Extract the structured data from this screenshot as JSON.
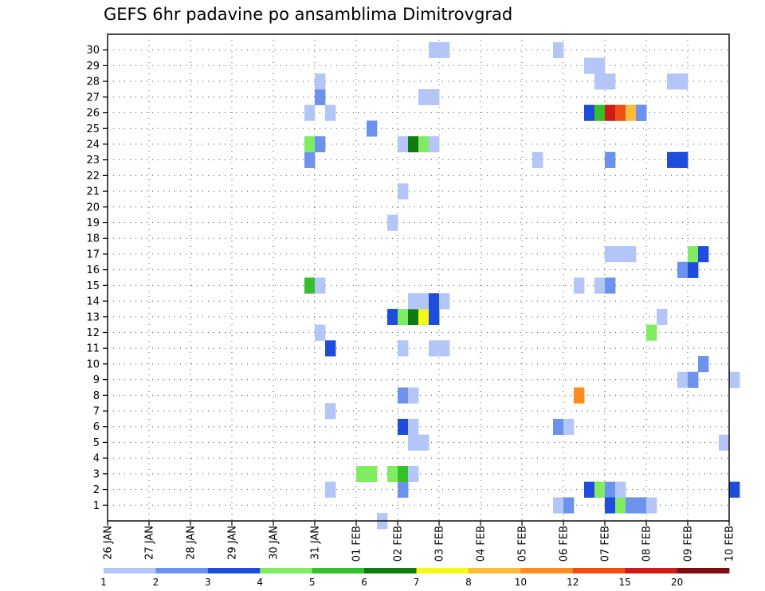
{
  "chart_data": {
    "type": "heatmap",
    "title": "GEFS 6hr padavine po ansamblima Dimitrovgrad",
    "x_tick_labels": [
      "26 JAN",
      "27 JAN",
      "28 JAN",
      "29 JAN",
      "30 JAN",
      "31 JAN",
      "01 FEB",
      "02 FEB",
      "03 FEB",
      "04 FEB",
      "05 FEB",
      "06 FEB",
      "07 FEB",
      "08 FEB",
      "09 FEB",
      "10 FEB"
    ],
    "y_tick_labels": [
      "1",
      "2",
      "3",
      "4",
      "5",
      "6",
      "7",
      "8",
      "9",
      "10",
      "11",
      "12",
      "13",
      "14",
      "15",
      "16",
      "17",
      "18",
      "19",
      "20",
      "21",
      "22",
      "23",
      "24",
      "25",
      "26",
      "27",
      "28",
      "29",
      "30"
    ],
    "ylim": [
      0,
      30
    ],
    "grid": true,
    "colorbar": {
      "labels": [
        "1",
        "2",
        "3",
        "4",
        "5",
        "6",
        "7",
        "8",
        "10",
        "12",
        "15",
        "20"
      ],
      "colors": [
        "#b3c6f7",
        "#6b93ee",
        "#1f4ddb",
        "#7fec62",
        "#33c02a",
        "#0f7a10",
        "#f7f71a",
        "#fdbb3a",
        "#fc8c1e",
        "#ef5012",
        "#cf1a18",
        "#800e0e"
      ]
    },
    "cells": [
      {
        "day": "31 JAN",
        "step": 1,
        "member": 2,
        "level": 1
      },
      {
        "day": "02 FEB",
        "step": 0,
        "member": 2,
        "level": 2
      },
      {
        "day": "06 FEB",
        "step": -1,
        "member": 1,
        "level": 1
      },
      {
        "day": "06 FEB",
        "step": 0,
        "member": 1,
        "level": 2
      },
      {
        "day": "07 FEB",
        "step": -2,
        "member": 2,
        "level": 3
      },
      {
        "day": "07 FEB",
        "step": -1,
        "member": 2,
        "level": 1
      },
      {
        "day": "07 FEB",
        "step": -1,
        "member": 2,
        "level": 4
      },
      {
        "day": "07 FEB",
        "step": 0,
        "member": 2,
        "level": 2
      },
      {
        "day": "07 FEB",
        "step": 0,
        "member": 1,
        "level": 3
      },
      {
        "day": "07 FEB",
        "step": 1,
        "member": 1,
        "level": 4
      },
      {
        "day": "07 FEB",
        "step": 2,
        "member": 1,
        "level": 2
      },
      {
        "day": "07 FEB",
        "step": 3,
        "member": 1,
        "level": 1
      },
      {
        "day": "08 FEB",
        "step": -1,
        "member": 1,
        "level": 2
      },
      {
        "day": "08 FEB",
        "step": 0,
        "member": 1,
        "level": 1
      },
      {
        "day": "07 FEB",
        "step": 1,
        "member": 2,
        "level": 1
      },
      {
        "day": "10 FEB",
        "step": 0,
        "member": 2,
        "level": 3
      },
      {
        "day": "01 FEB",
        "step": 0,
        "member": 3,
        "level": 4
      },
      {
        "day": "01 FEB",
        "step": 1,
        "member": 3,
        "level": 4
      },
      {
        "day": "02 FEB",
        "step": -1,
        "member": 3,
        "level": 4
      },
      {
        "day": "02 FEB",
        "step": 0,
        "member": 3,
        "level": 5
      },
      {
        "day": "02 FEB",
        "step": 1,
        "member": 3,
        "level": 1
      },
      {
        "day": "02 FEB",
        "step": 1,
        "member": 5,
        "level": 1
      },
      {
        "day": "02 FEB",
        "step": 2,
        "member": 5,
        "level": 1
      },
      {
        "day": "10 FEB",
        "step": -1,
        "member": 5,
        "level": 1
      },
      {
        "day": "02 FEB",
        "step": 0,
        "member": 6,
        "level": 3
      },
      {
        "day": "02 FEB",
        "step": 1,
        "member": 6,
        "level": 1
      },
      {
        "day": "06 FEB",
        "step": -1,
        "member": 6,
        "level": 2
      },
      {
        "day": "06 FEB",
        "step": 0,
        "member": 6,
        "level": 1
      },
      {
        "day": "31 JAN",
        "step": 1,
        "member": 7,
        "level": 1
      },
      {
        "day": "02 FEB",
        "step": 0,
        "member": 8,
        "level": 2
      },
      {
        "day": "02 FEB",
        "step": 1,
        "member": 8,
        "level": 1
      },
      {
        "day": "06 FEB",
        "step": 1,
        "member": 8,
        "level": 9
      },
      {
        "day": "09 FEB",
        "step": -1,
        "member": 9,
        "level": 1
      },
      {
        "day": "09 FEB",
        "step": 0,
        "member": 9,
        "level": 2
      },
      {
        "day": "10 FEB",
        "step": 0,
        "member": 9,
        "level": 1
      },
      {
        "day": "09 FEB",
        "step": 1,
        "member": 10,
        "level": 2
      },
      {
        "day": "31 JAN",
        "step": 1,
        "member": 11,
        "level": 3
      },
      {
        "day": "02 FEB",
        "step": 0,
        "member": 11,
        "level": 1
      },
      {
        "day": "03 FEB",
        "step": -1,
        "member": 11,
        "level": 1
      },
      {
        "day": "03 FEB",
        "step": 0,
        "member": 11,
        "level": 1
      },
      {
        "day": "31 JAN",
        "step": 0,
        "member": 12,
        "level": 1
      },
      {
        "day": "08 FEB",
        "step": 0,
        "member": 12,
        "level": 4
      },
      {
        "day": "02 FEB",
        "step": -1,
        "member": 13,
        "level": 3
      },
      {
        "day": "02 FEB",
        "step": 0,
        "member": 13,
        "level": 4
      },
      {
        "day": "02 FEB",
        "step": 1,
        "member": 13,
        "level": 6
      },
      {
        "day": "02 FEB",
        "step": 2,
        "member": 13,
        "level": 7
      },
      {
        "day": "02 FEB",
        "step": 3,
        "member": 13,
        "level": 3
      },
      {
        "day": "08 FEB",
        "step": 1,
        "member": 13,
        "level": 1
      },
      {
        "day": "02 FEB",
        "step": 1,
        "member": 14,
        "level": 1
      },
      {
        "day": "02 FEB",
        "step": 2,
        "member": 14,
        "level": 1
      },
      {
        "day": "02 FEB",
        "step": 3,
        "member": 14,
        "level": 3
      },
      {
        "day": "02 FEB",
        "step": 4,
        "member": 14,
        "level": 1
      },
      {
        "day": "31 JAN",
        "step": -1,
        "member": 15,
        "level": 5
      },
      {
        "day": "31 JAN",
        "step": 0,
        "member": 15,
        "level": 1
      },
      {
        "day": "06 FEB",
        "step": 1,
        "member": 15,
        "level": 1
      },
      {
        "day": "07 FEB",
        "step": -1,
        "member": 15,
        "level": 1
      },
      {
        "day": "07 FEB",
        "step": 0,
        "member": 15,
        "level": 2
      },
      {
        "day": "09 FEB",
        "step": -1,
        "member": 16,
        "level": 2
      },
      {
        "day": "09 FEB",
        "step": 0,
        "member": 16,
        "level": 3
      },
      {
        "day": "07 FEB",
        "step": 0,
        "member": 17,
        "level": 1
      },
      {
        "day": "07 FEB",
        "step": 1,
        "member": 17,
        "level": 1
      },
      {
        "day": "07 FEB",
        "step": 2,
        "member": 17,
        "level": 1
      },
      {
        "day": "09 FEB",
        "step": 0,
        "member": 17,
        "level": 4
      },
      {
        "day": "09 FEB",
        "step": 1,
        "member": 17,
        "level": 3
      },
      {
        "day": "02 FEB",
        "step": -1,
        "member": 19,
        "level": 1
      },
      {
        "day": "02 FEB",
        "step": 0,
        "member": 21,
        "level": 1
      },
      {
        "day": "31 JAN",
        "step": -1,
        "member": 23,
        "level": 2
      },
      {
        "day": "05 FEB",
        "step": 1,
        "member": 23,
        "level": 1
      },
      {
        "day": "07 FEB",
        "step": 0,
        "member": 23,
        "level": 2
      },
      {
        "day": "08 FEB",
        "step": 2,
        "member": 23,
        "level": 3
      },
      {
        "day": "08 FEB",
        "step": 3,
        "member": 23,
        "level": 2
      },
      {
        "day": "09 FEB",
        "step": -1,
        "member": 23,
        "level": 3
      },
      {
        "day": "31 JAN",
        "step": -1,
        "member": 24,
        "level": 4
      },
      {
        "day": "31 JAN",
        "step": 0,
        "member": 24,
        "level": 2
      },
      {
        "day": "02 FEB",
        "step": 0,
        "member": 24,
        "level": 1
      },
      {
        "day": "02 FEB",
        "step": 1,
        "member": 24,
        "level": 6
      },
      {
        "day": "02 FEB",
        "step": 2,
        "member": 24,
        "level": 4
      },
      {
        "day": "03 FEB",
        "step": -1,
        "member": 24,
        "level": 1
      },
      {
        "day": "01 FEB",
        "step": 1,
        "member": 25,
        "level": 2
      },
      {
        "day": "31 JAN",
        "step": -1,
        "member": 26,
        "level": 1
      },
      {
        "day": "31 JAN",
        "step": 1,
        "member": 26,
        "level": 1
      },
      {
        "day": "07 FEB",
        "step": -2,
        "member": 26,
        "level": 3
      },
      {
        "day": "07 FEB",
        "step": -1,
        "member": 26,
        "level": 5
      },
      {
        "day": "07 FEB",
        "step": 0,
        "member": 26,
        "level": 11
      },
      {
        "day": "07 FEB",
        "step": 1,
        "member": 26,
        "level": 10
      },
      {
        "day": "07 FEB",
        "step": 2,
        "member": 26,
        "level": 8
      },
      {
        "day": "07 FEB",
        "step": 3,
        "member": 26,
        "level": 3
      },
      {
        "day": "08 FEB",
        "step": -1,
        "member": 26,
        "level": 2
      },
      {
        "day": "31 JAN",
        "step": 0,
        "member": 27,
        "level": 2
      },
      {
        "day": "02 FEB",
        "step": 2,
        "member": 27,
        "level": 1
      },
      {
        "day": "02 FEB",
        "step": 3,
        "member": 27,
        "level": 1
      },
      {
        "day": "31 JAN",
        "step": 0,
        "member": 28,
        "level": 1
      },
      {
        "day": "07 FEB",
        "step": -1,
        "member": 28,
        "level": 1
      },
      {
        "day": "07 FEB",
        "step": 0,
        "member": 28,
        "level": 1
      },
      {
        "day": "08 FEB",
        "step": 2,
        "member": 28,
        "level": 1
      },
      {
        "day": "08 FEB",
        "step": 3,
        "member": 28,
        "level": 1
      },
      {
        "day": "07 FEB",
        "step": -2,
        "member": 29,
        "level": 1
      },
      {
        "day": "07 FEB",
        "step": -1,
        "member": 29,
        "level": 1
      },
      {
        "day": "03 FEB",
        "step": -1,
        "member": 30,
        "level": 1
      },
      {
        "day": "03 FEB",
        "step": 0,
        "member": 30,
        "level": 1
      },
      {
        "day": "06 FEB",
        "step": -1,
        "member": 30,
        "level": 1
      },
      {
        "day": "02 FEB",
        "step": -2,
        "member": 0,
        "level": 1
      }
    ]
  }
}
